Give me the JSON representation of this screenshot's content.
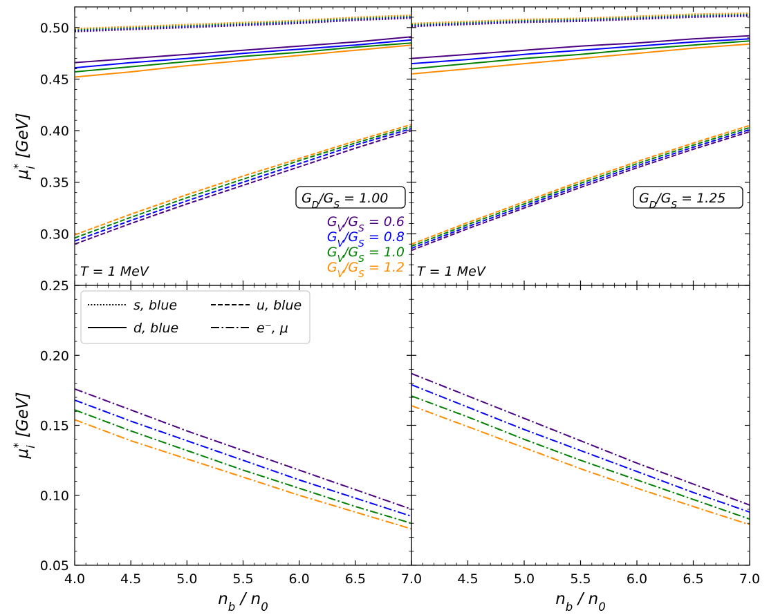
{
  "chart_data": [
    {
      "type": "line",
      "panel": "top-left",
      "title": "",
      "ylabel": "μ_i* [GeV]",
      "xlim": [
        4.0,
        7.0
      ],
      "ylim": [
        0.25,
        0.52
      ],
      "yticks": [
        "0.25",
        "0.30",
        "0.35",
        "0.40",
        "0.45",
        "0.50"
      ],
      "box_label": "G_D/G_S = 1.00",
      "temp_label": "T = 1 MeV",
      "x": [
        4.0,
        4.5,
        5.0,
        5.5,
        6.0,
        6.5,
        7.0
      ],
      "series": [
        {
          "name": "s, GV/GS=0.6",
          "style": "dotted",
          "color": "#4b0082",
          "values": [
            0.496,
            0.498,
            0.5,
            0.502,
            0.504,
            0.507,
            0.509
          ]
        },
        {
          "name": "s, GV/GS=0.8",
          "style": "dotted",
          "color": "#0000ff",
          "values": [
            0.497,
            0.499,
            0.501,
            0.503,
            0.505,
            0.508,
            0.51
          ]
        },
        {
          "name": "s, GV/GS=1.0",
          "style": "dotted",
          "color": "#008000",
          "values": [
            0.498,
            0.5,
            0.502,
            0.504,
            0.506,
            0.509,
            0.511
          ]
        },
        {
          "name": "s, GV/GS=1.2",
          "style": "dotted",
          "color": "#ff8c00",
          "values": [
            0.499,
            0.501,
            0.503,
            0.505,
            0.507,
            0.51,
            0.512
          ]
        },
        {
          "name": "d, GV/GS=0.6",
          "style": "solid",
          "color": "#4b0082",
          "values": [
            0.466,
            0.47,
            0.474,
            0.478,
            0.482,
            0.486,
            0.491
          ]
        },
        {
          "name": "d, GV/GS=0.8",
          "style": "solid",
          "color": "#0000ff",
          "values": [
            0.461,
            0.466,
            0.47,
            0.475,
            0.479,
            0.483,
            0.488
          ]
        },
        {
          "name": "d, GV/GS=1.0",
          "style": "solid",
          "color": "#008000",
          "values": [
            0.457,
            0.462,
            0.467,
            0.472,
            0.476,
            0.481,
            0.485
          ]
        },
        {
          "name": "d, GV/GS=1.2",
          "style": "solid",
          "color": "#ff8c00",
          "values": [
            0.452,
            0.457,
            0.463,
            0.468,
            0.473,
            0.478,
            0.483
          ]
        },
        {
          "name": "u, GV/GS=0.6",
          "style": "dashed",
          "color": "#4b0082",
          "values": [
            0.29,
            0.31,
            0.329,
            0.347,
            0.365,
            0.383,
            0.4
          ]
        },
        {
          "name": "u, GV/GS=0.8",
          "style": "dashed",
          "color": "#0000ff",
          "values": [
            0.293,
            0.313,
            0.332,
            0.35,
            0.368,
            0.386,
            0.402
          ]
        },
        {
          "name": "u, GV/GS=1.0",
          "style": "dashed",
          "color": "#008000",
          "values": [
            0.296,
            0.316,
            0.335,
            0.353,
            0.371,
            0.388,
            0.404
          ]
        },
        {
          "name": "u, GV/GS=1.2",
          "style": "dashed",
          "color": "#ff8c00",
          "values": [
            0.299,
            0.319,
            0.338,
            0.356,
            0.373,
            0.39,
            0.406
          ]
        }
      ]
    },
    {
      "type": "line",
      "panel": "top-right",
      "title": "",
      "ylabel": "",
      "xlim": [
        4.0,
        7.0
      ],
      "ylim": [
        0.25,
        0.52
      ],
      "box_label": "G_D/G_S = 1.25",
      "temp_label": "T = 1 MeV",
      "x": [
        4.0,
        4.5,
        5.0,
        5.5,
        6.0,
        6.5,
        7.0
      ],
      "series": [
        {
          "name": "s, GV/GS=0.6",
          "style": "dotted",
          "color": "#4b0082",
          "values": [
            0.501,
            0.503,
            0.505,
            0.506,
            0.508,
            0.51,
            0.511
          ]
        },
        {
          "name": "s, GV/GS=0.8",
          "style": "dotted",
          "color": "#0000ff",
          "values": [
            0.502,
            0.504,
            0.506,
            0.507,
            0.509,
            0.511,
            0.512
          ]
        },
        {
          "name": "s, GV/GS=1.0",
          "style": "dotted",
          "color": "#008000",
          "values": [
            0.503,
            0.505,
            0.507,
            0.508,
            0.51,
            0.512,
            0.513
          ]
        },
        {
          "name": "s, GV/GS=1.2",
          "style": "dotted",
          "color": "#ff8c00",
          "values": [
            0.504,
            0.506,
            0.508,
            0.509,
            0.511,
            0.513,
            0.514
          ]
        },
        {
          "name": "d, GV/GS=0.6",
          "style": "solid",
          "color": "#4b0082",
          "values": [
            0.47,
            0.474,
            0.478,
            0.482,
            0.485,
            0.489,
            0.492
          ]
        },
        {
          "name": "d, GV/GS=0.8",
          "style": "solid",
          "color": "#0000ff",
          "values": [
            0.465,
            0.469,
            0.474,
            0.478,
            0.482,
            0.486,
            0.489
          ]
        },
        {
          "name": "d, GV/GS=1.0",
          "style": "solid",
          "color": "#008000",
          "values": [
            0.46,
            0.465,
            0.47,
            0.474,
            0.479,
            0.483,
            0.487
          ]
        },
        {
          "name": "d, GV/GS=1.2",
          "style": "solid",
          "color": "#ff8c00",
          "values": [
            0.455,
            0.46,
            0.465,
            0.47,
            0.475,
            0.48,
            0.484
          ]
        },
        {
          "name": "u, GV/GS=0.6",
          "style": "dashed",
          "color": "#4b0082",
          "values": [
            0.284,
            0.305,
            0.325,
            0.345,
            0.364,
            0.382,
            0.399
          ]
        },
        {
          "name": "u, GV/GS=0.8",
          "style": "dashed",
          "color": "#0000ff",
          "values": [
            0.286,
            0.307,
            0.327,
            0.347,
            0.366,
            0.384,
            0.401
          ]
        },
        {
          "name": "u, GV/GS=1.0",
          "style": "dashed",
          "color": "#008000",
          "values": [
            0.288,
            0.309,
            0.329,
            0.349,
            0.368,
            0.386,
            0.403
          ]
        },
        {
          "name": "u, GV/GS=1.2",
          "style": "dashed",
          "color": "#ff8c00",
          "values": [
            0.29,
            0.311,
            0.331,
            0.351,
            0.37,
            0.388,
            0.405
          ]
        }
      ]
    },
    {
      "type": "line",
      "panel": "bottom-left",
      "title": "",
      "xlabel": "n_b / n_0",
      "ylabel": "μ_i* [GeV]",
      "xlim": [
        4.0,
        7.0
      ],
      "ylim": [
        0.05,
        0.25
      ],
      "xticks": [
        "4.0",
        "4.5",
        "5.0",
        "5.5",
        "6.0",
        "6.5",
        "7.0"
      ],
      "yticks": [
        "0.05",
        "0.10",
        "0.15",
        "0.20"
      ],
      "x": [
        4.0,
        4.5,
        5.0,
        5.5,
        6.0,
        6.5,
        7.0
      ],
      "series": [
        {
          "name": "e-, μ GV/GS=0.6",
          "style": "dashdot",
          "color": "#4b0082",
          "values": [
            0.176,
            0.161,
            0.146,
            0.132,
            0.118,
            0.104,
            0.09
          ]
        },
        {
          "name": "e-, μ GV/GS=0.8",
          "style": "dashdot",
          "color": "#0000ff",
          "values": [
            0.168,
            0.153,
            0.139,
            0.125,
            0.111,
            0.098,
            0.085
          ]
        },
        {
          "name": "e-, μ GV/GS=1.0",
          "style": "dashdot",
          "color": "#008000",
          "values": [
            0.161,
            0.146,
            0.132,
            0.118,
            0.105,
            0.092,
            0.08
          ]
        },
        {
          "name": "e-, μ GV/GS=1.2",
          "style": "dashdot",
          "color": "#ff8c00",
          "values": [
            0.154,
            0.139,
            0.126,
            0.113,
            0.1,
            0.088,
            0.076
          ]
        }
      ]
    },
    {
      "type": "line",
      "panel": "bottom-right",
      "title": "",
      "xlabel": "n_b / n_0",
      "ylabel": "",
      "xlim": [
        4.0,
        7.0
      ],
      "ylim": [
        0.05,
        0.25
      ],
      "xticks": [
        "4.5",
        "5.0",
        "5.5",
        "6.0",
        "6.5",
        "7.0"
      ],
      "x": [
        4.0,
        4.5,
        5.0,
        5.5,
        6.0,
        6.5,
        7.0
      ],
      "series": [
        {
          "name": "e-, μ GV/GS=0.6",
          "style": "dashdot",
          "color": "#4b0082",
          "values": [
            0.187,
            0.171,
            0.155,
            0.139,
            0.123,
            0.108,
            0.093
          ]
        },
        {
          "name": "e-, μ GV/GS=0.8",
          "style": "dashdot",
          "color": "#0000ff",
          "values": [
            0.179,
            0.163,
            0.147,
            0.132,
            0.117,
            0.102,
            0.088
          ]
        },
        {
          "name": "e-, μ GV/GS=1.0",
          "style": "dashdot",
          "color": "#008000",
          "values": [
            0.171,
            0.156,
            0.14,
            0.125,
            0.111,
            0.097,
            0.083
          ]
        },
        {
          "name": "e-, μ GV/GS=1.2",
          "style": "dashdot",
          "color": "#ff8c00",
          "values": [
            0.164,
            0.149,
            0.134,
            0.119,
            0.105,
            0.092,
            0.079
          ]
        }
      ]
    }
  ],
  "gv_legend": [
    {
      "label": "G_V/G_S = 0.6",
      "color": "#4b0082"
    },
    {
      "label": "G_V/G_S = 0.8",
      "color": "#0000ff"
    },
    {
      "label": "G_V/G_S = 1.0",
      "color": "#008000"
    },
    {
      "label": "G_V/G_S = 1.2",
      "color": "#ff8c00"
    }
  ],
  "style_legend": [
    {
      "label": "s, blue",
      "style": "dotted"
    },
    {
      "label": "u, blue",
      "style": "dashed"
    },
    {
      "label": "d, blue",
      "style": "solid"
    },
    {
      "label": "e⁻, μ",
      "style": "dashdot"
    }
  ]
}
